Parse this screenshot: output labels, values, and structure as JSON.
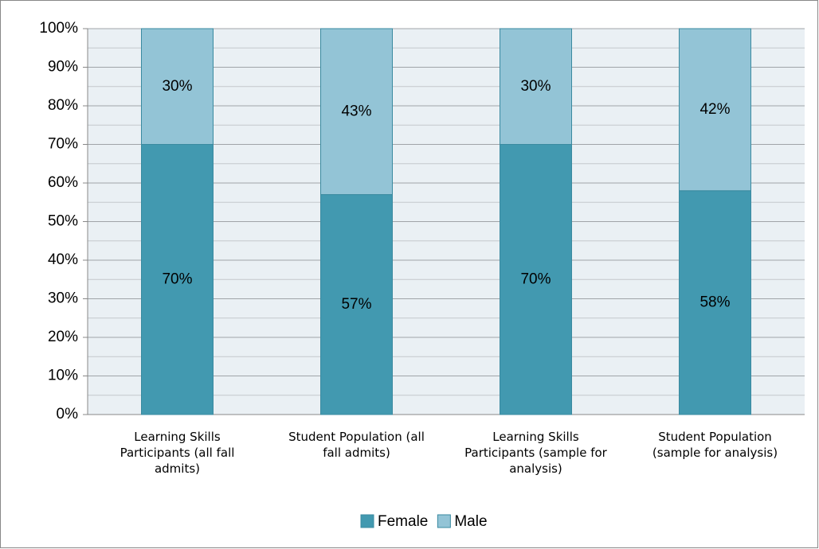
{
  "chart_data": {
    "type": "stacked_bar",
    "categories": [
      "Learning Skills Participants (all fall admits)",
      "Student Population (all fall admits)",
      "Learning Skills Participants (sample for analysis)",
      "Student Population (sample for analysis)"
    ],
    "series": [
      {
        "name": "Female",
        "color": "#4299b0",
        "values": [
          70,
          57,
          70,
          58
        ],
        "value_labels": [
          "70%",
          "57%",
          "70%",
          "58%"
        ]
      },
      {
        "name": "Male",
        "color": "#93c4d6",
        "values": [
          30,
          43,
          30,
          42
        ],
        "value_labels": [
          "30%",
          "43%",
          "30%",
          "42%"
        ]
      }
    ],
    "ylim": [
      0,
      100
    ],
    "yticks": [
      {
        "value": 0,
        "label": "0%"
      },
      {
        "value": 10,
        "label": "10%"
      },
      {
        "value": 20,
        "label": "20%"
      },
      {
        "value": 30,
        "label": "30%"
      },
      {
        "value": 40,
        "label": "40%"
      },
      {
        "value": 50,
        "label": "50%"
      },
      {
        "value": 60,
        "label": "60%"
      },
      {
        "value": 70,
        "label": "70%"
      },
      {
        "value": 80,
        "label": "80%"
      },
      {
        "value": 90,
        "label": "90%"
      },
      {
        "value": 100,
        "label": "100%"
      }
    ],
    "yminor_ticks": [
      5,
      15,
      25,
      35,
      45,
      55,
      65,
      75,
      85,
      95
    ],
    "grid": true,
    "legend": "bottom"
  }
}
